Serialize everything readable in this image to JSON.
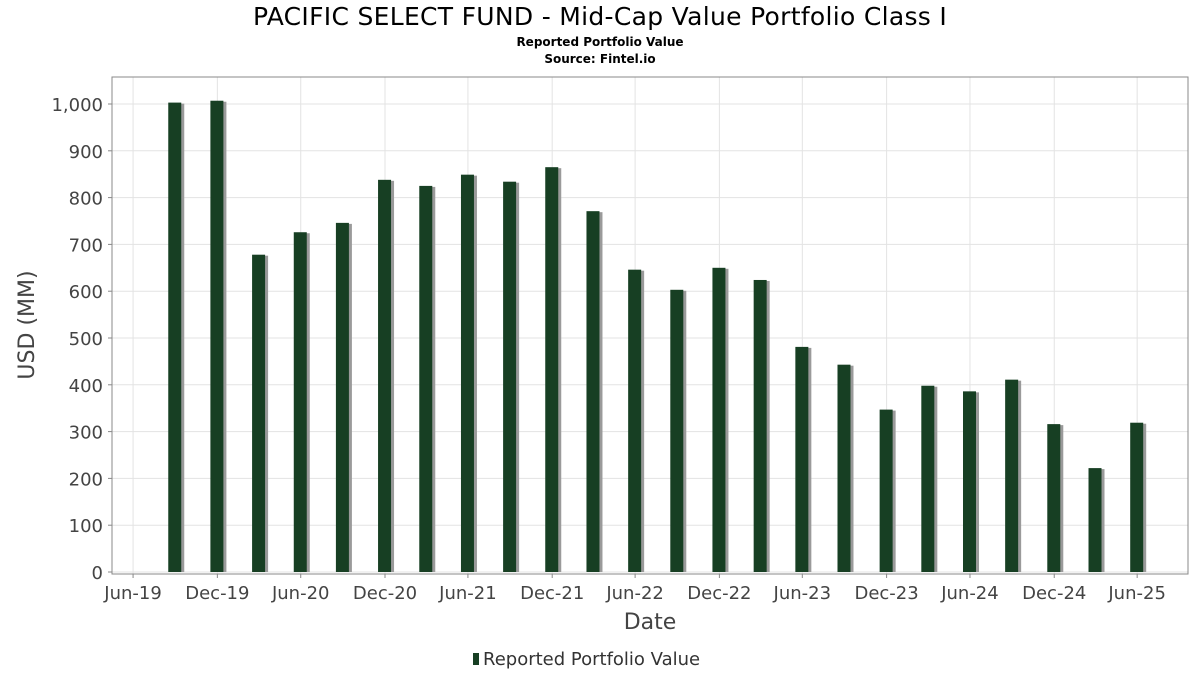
{
  "chart_data": {
    "type": "bar",
    "title": "PACIFIC SELECT FUND - Mid-Cap Value Portfolio Class I",
    "subtitle": "Reported Portfolio Value",
    "source": "Source: Fintel.io",
    "xlabel": "Date",
    "ylabel": "USD (MM)",
    "ylim": [
      0,
      1010
    ],
    "yticks": [
      0,
      100,
      200,
      300,
      400,
      500,
      600,
      700,
      800,
      900,
      1000
    ],
    "ytick_labels": [
      "0",
      "100",
      "200",
      "300",
      "400",
      "500",
      "600",
      "700",
      "800",
      "900",
      "1,000"
    ],
    "xlim": [
      "2019-05-16",
      "2025-10-20"
    ],
    "xticks": [
      "2019-07-01",
      "2020-01-01",
      "2020-07-01",
      "2021-01-01",
      "2021-07-01",
      "2022-01-01",
      "2022-07-01",
      "2023-01-01",
      "2023-07-01",
      "2024-01-01",
      "2024-07-01",
      "2025-01-01",
      "2025-07-01"
    ],
    "xtick_labels": [
      "Jun-19",
      "Dec-19",
      "Jun-20",
      "Dec-20",
      "Jun-21",
      "Dec-21",
      "Jun-22",
      "Dec-22",
      "Jun-23",
      "Dec-23",
      "Jun-24",
      "Dec-24",
      "Jun-25"
    ],
    "grid": true,
    "legend_position": "bottom",
    "x": [
      "2019-09-30",
      "2019-12-31",
      "2020-03-31",
      "2020-06-30",
      "2020-09-30",
      "2020-12-31",
      "2021-03-31",
      "2021-06-30",
      "2021-09-30",
      "2021-12-31",
      "2022-03-31",
      "2022-06-30",
      "2022-09-30",
      "2022-12-31",
      "2023-03-31",
      "2023-06-30",
      "2023-09-30",
      "2023-12-31",
      "2024-03-31",
      "2024-06-30",
      "2024-09-30",
      "2024-12-31",
      "2025-03-31",
      "2025-06-30"
    ],
    "series": [
      {
        "name": "Reported Portfolio Value",
        "color": "#173f23",
        "values": [
          1003,
          1007,
          678,
          726,
          746,
          838,
          825,
          849,
          834,
          865,
          771,
          646,
          603,
          650,
          624,
          481,
          443,
          347,
          398,
          386,
          411,
          316,
          222,
          319
        ]
      }
    ]
  }
}
